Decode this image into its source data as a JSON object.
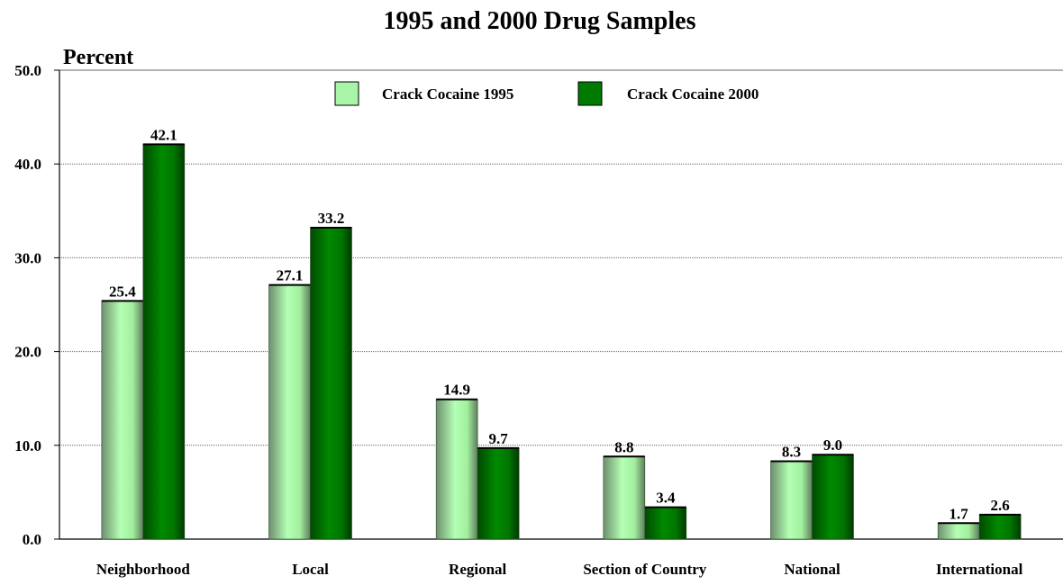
{
  "chart_data": {
    "type": "bar",
    "title": "1995 and 2000 Drug Samples",
    "ylabel": "Percent",
    "xlabel": "",
    "ylim": [
      0,
      50
    ],
    "yticks": [
      "0.0",
      "10.0",
      "20.0",
      "30.0",
      "40.0",
      "50.0"
    ],
    "grid": true,
    "legend_position": "top-center",
    "categories": [
      "Neighborhood",
      "Local",
      "Regional",
      "Section of Country",
      "National",
      "International"
    ],
    "series": [
      {
        "name": "Crack Cocaine 1995",
        "values": [
          25.4,
          27.1,
          14.9,
          8.8,
          8.3,
          1.7
        ],
        "labels": [
          "25.4",
          "27.1",
          "14.9",
          "8.8",
          "8.3",
          "1.7"
        ],
        "color": "#a8f5a8"
      },
      {
        "name": "Crack Cocaine 2000",
        "values": [
          42.1,
          33.2,
          9.7,
          3.4,
          9.0,
          2.6
        ],
        "labels": [
          "42.1",
          "33.2",
          "9.7",
          "3.4",
          "9.0",
          "2.6"
        ],
        "color": "#007a00"
      }
    ]
  }
}
